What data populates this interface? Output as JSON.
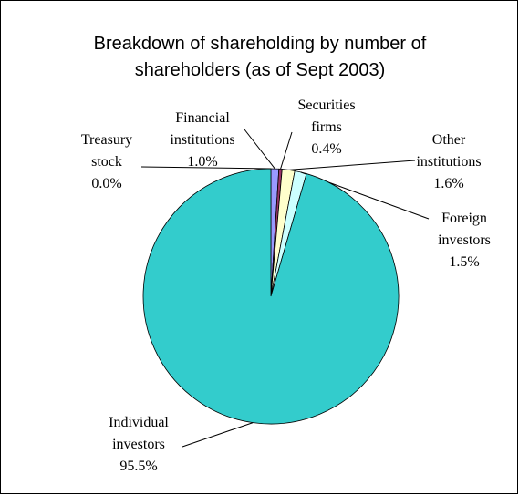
{
  "chart_data": {
    "type": "pie",
    "title": "Breakdown of shareholding by number of shareholders (as of Sept 2003)",
    "categories": [
      "Treasury stock",
      "Financial institutions",
      "Securities firms",
      "Other institutions",
      "Foreign investors",
      "Individual investors"
    ],
    "values": [
      0.0,
      1.0,
      0.4,
      1.6,
      1.5,
      95.5
    ],
    "value_labels": [
      "0.0%",
      "1.0%",
      "0.4%",
      "1.6%",
      "1.5%",
      "95.5%"
    ],
    "colors": [
      "#ff99cc",
      "#9999ff",
      "#993366",
      "#ffffcc",
      "#ccffff",
      "#33cccc"
    ]
  }
}
